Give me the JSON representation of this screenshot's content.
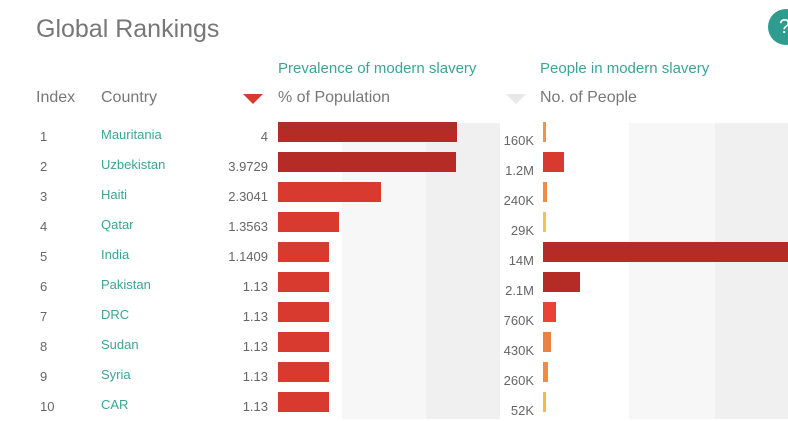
{
  "header": {
    "title": "Global Rankings",
    "help_label": "?"
  },
  "sections": {
    "prevalence": "Prevalence of modern slavery",
    "people": "People in modern slavery"
  },
  "columns": {
    "index": "Index",
    "country": "Country",
    "prevalence": "% of Population",
    "people": "No. of People"
  },
  "scale": {
    "prevalence_max": 4,
    "people_max_millions": 14
  },
  "rows": [
    {
      "index": "1",
      "country": "Mauritania",
      "prevalence": "4",
      "prevalence_value": 4,
      "people": "160K",
      "people_millions": 0.16,
      "prevalence_color": "#b52b25",
      "people_color": "#f29247"
    },
    {
      "index": "2",
      "country": "Uzbekistan",
      "prevalence": "3.9729",
      "prevalence_value": 3.9729,
      "people": "1.2M",
      "people_millions": 1.2,
      "prevalence_color": "#b52b25",
      "people_color": "#d93a2f"
    },
    {
      "index": "3",
      "country": "Haiti",
      "prevalence": "2.3041",
      "prevalence_value": 2.3041,
      "people": "240K",
      "people_millions": 0.24,
      "prevalence_color": "#d93a2f",
      "people_color": "#f28a42"
    },
    {
      "index": "4",
      "country": "Qatar",
      "prevalence": "1.3563",
      "prevalence_value": 1.3563,
      "people": "29K",
      "people_millions": 0.029,
      "prevalence_color": "#d93a2f",
      "people_color": "#f5c24b"
    },
    {
      "index": "5",
      "country": "India",
      "prevalence": "1.1409",
      "prevalence_value": 1.1409,
      "people": "14M",
      "people_millions": 14,
      "prevalence_color": "#d93a2f",
      "people_color": "#b52b25"
    },
    {
      "index": "6",
      "country": "Pakistan",
      "prevalence": "1.13",
      "prevalence_value": 1.13,
      "people": "2.1M",
      "people_millions": 2.1,
      "prevalence_color": "#d93a2f",
      "people_color": "#b52b25"
    },
    {
      "index": "7",
      "country": "DRC",
      "prevalence": "1.13",
      "prevalence_value": 1.13,
      "people": "760K",
      "people_millions": 0.76,
      "prevalence_color": "#d93a2f",
      "people_color": "#ea4335"
    },
    {
      "index": "8",
      "country": "Sudan",
      "prevalence": "1.13",
      "prevalence_value": 1.13,
      "people": "430K",
      "people_millions": 0.43,
      "prevalence_color": "#d93a2f",
      "people_color": "#f08040"
    },
    {
      "index": "9",
      "country": "Syria",
      "prevalence": "1.13",
      "prevalence_value": 1.13,
      "people": "260K",
      "people_millions": 0.26,
      "prevalence_color": "#d93a2f",
      "people_color": "#f28a42"
    },
    {
      "index": "10",
      "country": "CAR",
      "prevalence": "1.13",
      "prevalence_value": 1.13,
      "people": "52K",
      "people_millions": 0.052,
      "prevalence_color": "#d93a2f",
      "people_color": "#f5b84b"
    }
  ]
}
